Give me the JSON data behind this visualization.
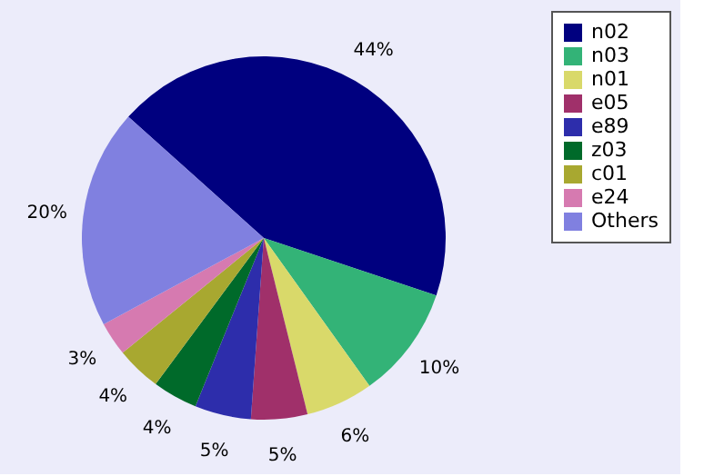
{
  "chart_data": {
    "type": "pie",
    "categories": [
      "n02",
      "n03",
      "n01",
      "e05",
      "e89",
      "z03",
      "c01",
      "e24",
      "Others"
    ],
    "values": [
      43.5,
      10,
      6,
      5,
      5,
      4,
      4,
      3,
      19.5
    ],
    "value_labels": [
      "44%",
      "10%",
      "6%",
      "5%",
      "5%",
      "4%",
      "4%",
      "3%",
      "20%"
    ],
    "colors": [
      "#00007f",
      "#33b377",
      "#d9d96a",
      "#a0306a",
      "#2d2dab",
      "#006a2a",
      "#a8a830",
      "#d67ab0",
      "#8080e0"
    ],
    "legend": "right"
  }
}
